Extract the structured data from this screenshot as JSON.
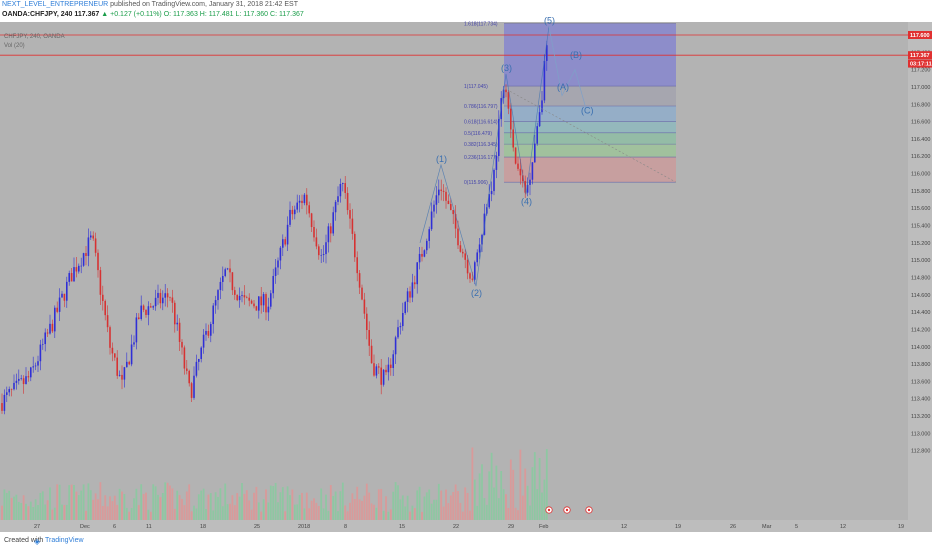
{
  "header": {
    "author": "NEXT_LEVEL_ENTREPRENEUR",
    "published": "published on TradingView.com, January 31, 2018 21:42 EST",
    "symbol": "OANDA:CHFJPY, 240",
    "last": "117.367",
    "change": "▲ +0.127 (+0.11%)",
    "open": "O: 117.363",
    "high": "H: 117.481",
    "low": "L: 117.360",
    "close": "C: 117.367"
  },
  "legend": {
    "main": "CHFJPY, 240, OANDA",
    "vol": "Vol (20)"
  },
  "footer": {
    "created": "Created with",
    "brand": "TradingView"
  },
  "colors": {
    "background": "#b3b3b3",
    "up": "#2f2fd6",
    "down": "#d63232",
    "vol_up": "#8ec7a2",
    "vol_down": "#d99a9a",
    "wave": "#3a6fb0",
    "resistance": "#e03030",
    "box": "#7b7fd1"
  },
  "chart_data": {
    "type": "candlestick",
    "ylim": [
      112.0,
      117.75
    ],
    "y_ticks": [
      "117.600",
      "117.400",
      "117.200",
      "117.000",
      "116.800",
      "116.600",
      "116.400",
      "116.200",
      "116.000",
      "115.800",
      "115.600",
      "115.400",
      "115.200",
      "115.000",
      "114.800",
      "114.600",
      "114.400",
      "114.200",
      "114.000",
      "113.800",
      "113.600",
      "113.400",
      "113.200",
      "113.000",
      "112.800"
    ],
    "x_ticks": [
      "27",
      "Dec",
      "6",
      "11",
      "18",
      "25",
      "2018",
      "8",
      "15",
      "22",
      "29",
      "Feb",
      "12",
      "19",
      "26",
      "Mar",
      "5",
      "12",
      "19"
    ],
    "price_labels": [
      {
        "value": 117.6,
        "text": "117.600",
        "bg": "#e03030"
      },
      {
        "value": 117.367,
        "text": "117.367",
        "bg": "#e03030"
      },
      {
        "value": 117.27,
        "text": "03:17:11",
        "bg": "#e03030"
      }
    ],
    "resistance": [
      117.6,
      117.367
    ],
    "fib_levels": [
      {
        "ratio": "1.618(117.734)",
        "price": 117.73
      },
      {
        "ratio": "1(117.045)",
        "price": 117.01
      },
      {
        "ratio": "0.786(116.797)",
        "price": 116.78
      },
      {
        "ratio": "0.618(116.614)",
        "price": 116.6
      },
      {
        "ratio": "0.5(116.479)",
        "price": 116.47
      },
      {
        "ratio": "0.382(116.345)",
        "price": 116.34
      },
      {
        "ratio": "0.236(116.177)",
        "price": 116.19
      },
      {
        "ratio": "0(115.906)",
        "price": 115.9
      }
    ],
    "waves": [
      {
        "label": "(1)",
        "price": 116.1
      },
      {
        "label": "(2)",
        "price": 114.7
      },
      {
        "label": "(3)",
        "price": 117.15
      },
      {
        "label": "(4)",
        "price": 115.76
      },
      {
        "label": "(5)",
        "price": 117.7
      },
      {
        "label": "(A)",
        "price": 116.93
      },
      {
        "label": "(B)",
        "price": 117.3
      },
      {
        "label": "(C)",
        "price": 116.66
      }
    ],
    "path_points": [
      [
        0,
        113.35
      ],
      [
        30,
        113.65
      ],
      [
        50,
        114.2
      ],
      [
        72,
        114.85
      ],
      [
        92,
        115.25
      ],
      [
        110,
        114.0
      ],
      [
        122,
        113.55
      ],
      [
        140,
        114.4
      ],
      [
        170,
        114.6
      ],
      [
        190,
        113.45
      ],
      [
        205,
        114.1
      ],
      [
        225,
        114.85
      ],
      [
        245,
        114.5
      ],
      [
        268,
        114.5
      ],
      [
        290,
        115.5
      ],
      [
        305,
        115.75
      ],
      [
        322,
        115.0
      ],
      [
        342,
        115.9
      ],
      [
        358,
        114.9
      ],
      [
        372,
        113.8
      ],
      [
        386,
        113.6
      ],
      [
        400,
        114.3
      ],
      [
        420,
        115.0
      ],
      [
        440,
        115.9
      ],
      [
        460,
        115.2
      ],
      [
        472,
        114.8
      ],
      [
        484,
        115.5
      ],
      [
        494,
        116.0
      ],
      [
        500,
        116.7
      ],
      [
        506,
        117.05
      ],
      [
        512,
        116.3
      ],
      [
        520,
        115.95
      ],
      [
        526,
        115.76
      ],
      [
        534,
        116.3
      ],
      [
        542,
        116.95
      ],
      [
        547,
        117.5
      ]
    ]
  }
}
